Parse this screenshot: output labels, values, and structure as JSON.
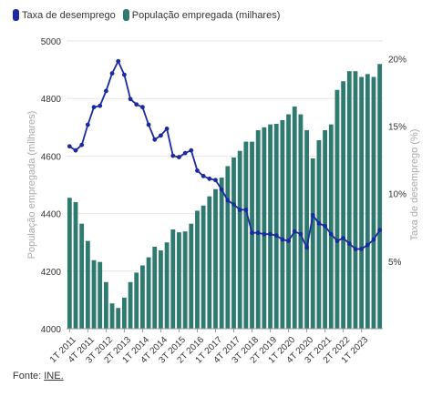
{
  "legend": {
    "line_label": "Taxa de desemprego",
    "bar_label": "População empregada (milhares)"
  },
  "footer": {
    "prefix": "Fonte:",
    "source": "INE."
  },
  "colors": {
    "line": "#1a2aa0",
    "bar": "#2e7a70",
    "grid": "#e6e6e6",
    "axis_text": "#aaaaaa",
    "tick_text": "#333333"
  },
  "chart_data": {
    "type": "bar",
    "x_tick_labels": [
      "1T 2011",
      "4T 2011",
      "3T 2012",
      "2T 2013",
      "1T 2014",
      "4T 2014",
      "3T 2015",
      "2T 2016",
      "1T 2017",
      "4T 2017",
      "3T 2018",
      "2T 2019",
      "1T 2020",
      "4T 2020",
      "3T 2021",
      "2T 2022",
      "1T 2023"
    ],
    "ylabel_left": "População empregada (milhares)",
    "ylabel_right": "Taxa de desemprego (%)",
    "ylim_left": [
      4000,
      5000
    ],
    "yticks_left": [
      "4000",
      "4200",
      "4400",
      "4600",
      "4800",
      "5000"
    ],
    "ylim_right": [
      0,
      21.3
    ],
    "yticks_right": [
      "5%",
      "10%",
      "15%",
      "20%"
    ],
    "grid": true,
    "legend_position": "top-left",
    "series": [
      {
        "name": "População empregada (milhares)",
        "type": "bar",
        "axis": "left",
        "values": [
          4455,
          4440,
          4365,
          4305,
          4238,
          4232,
          4162,
          4088,
          4072,
          4108,
          4162,
          4195,
          4220,
          4248,
          4285,
          4272,
          4300,
          4345,
          4335,
          4338,
          4365,
          4410,
          4428,
          4460,
          4485,
          4525,
          4565,
          4595,
          4618,
          4650,
          4650,
          4690,
          4700,
          4710,
          4712,
          4725,
          4745,
          4772,
          4745,
          4690,
          4592,
          4655,
          4690,
          4710,
          4830,
          4860,
          4895,
          4895,
          4875,
          4885,
          4875,
          4920
        ]
      },
      {
        "name": "Taxa de desemprego",
        "type": "line",
        "axis": "right",
        "values": [
          13.5,
          13.2,
          13.6,
          15.1,
          16.4,
          16.5,
          17.6,
          18.9,
          19.8,
          18.8,
          17.0,
          16.6,
          16.4,
          15.1,
          14.0,
          14.3,
          14.8,
          12.8,
          12.7,
          13.0,
          13.2,
          11.7,
          11.3,
          11.1,
          11.0,
          10.3,
          9.5,
          9.2,
          8.8,
          8.8,
          7.1,
          7.1,
          7.0,
          7.0,
          6.9,
          6.6,
          6.5,
          7.2,
          7.0,
          6.0,
          8.4,
          7.8,
          7.6,
          7.0,
          6.5,
          6.7,
          6.3,
          5.9,
          5.9,
          6.2,
          6.6,
          7.3
        ]
      }
    ]
  }
}
